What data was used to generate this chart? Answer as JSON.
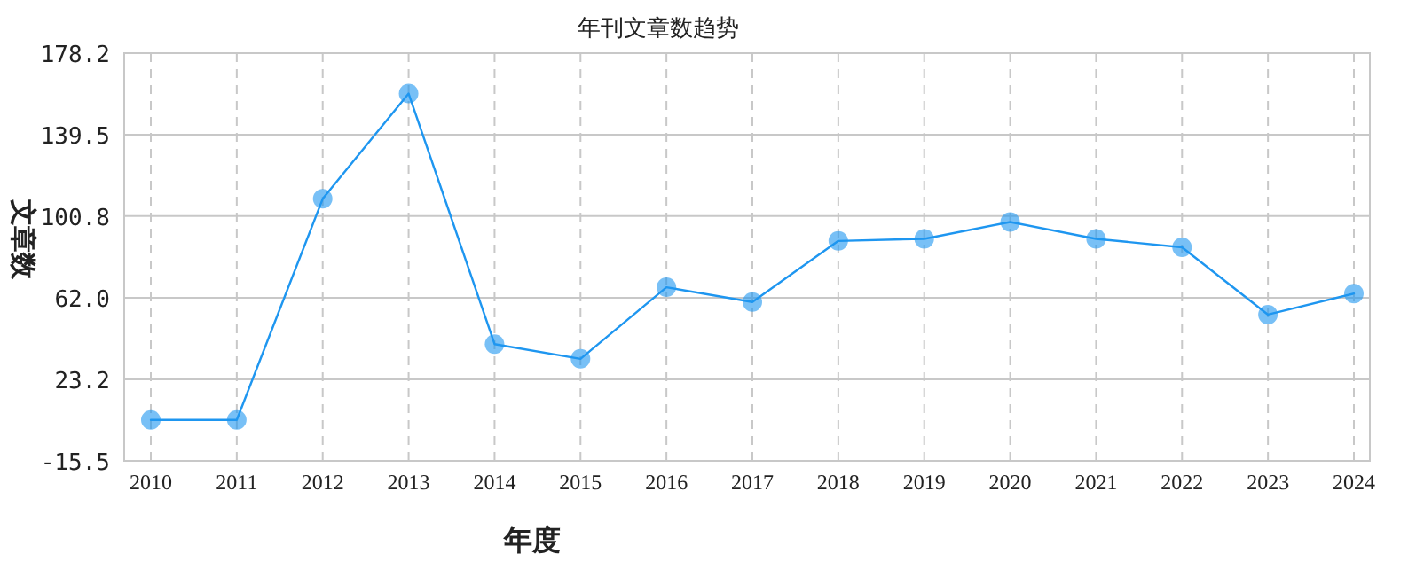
{
  "chart_data": {
    "type": "line",
    "title": "年刊文章数趋势",
    "xlabel": "年度",
    "ylabel": "文章数",
    "categories": [
      "2010",
      "2011",
      "2012",
      "2013",
      "2014",
      "2015",
      "2016",
      "2017",
      "2018",
      "2019",
      "2020",
      "2021",
      "2022",
      "2023",
      "2024"
    ],
    "series": [
      {
        "color": "#1e96f0",
        "values": [
          4,
          4,
          109,
          159,
          40,
          33,
          67,
          60,
          89,
          90,
          98,
          90,
          86,
          54,
          64
        ]
      }
    ],
    "ylim": [
      -15.5,
      178.2
    ],
    "yticks": [
      -15.5,
      23.2,
      {
        "value": 62,
        "label": "62.0"
      },
      100.8,
      139.5,
      178.2
    ],
    "grid": true,
    "marker": "circle",
    "line_style": "solid"
  }
}
